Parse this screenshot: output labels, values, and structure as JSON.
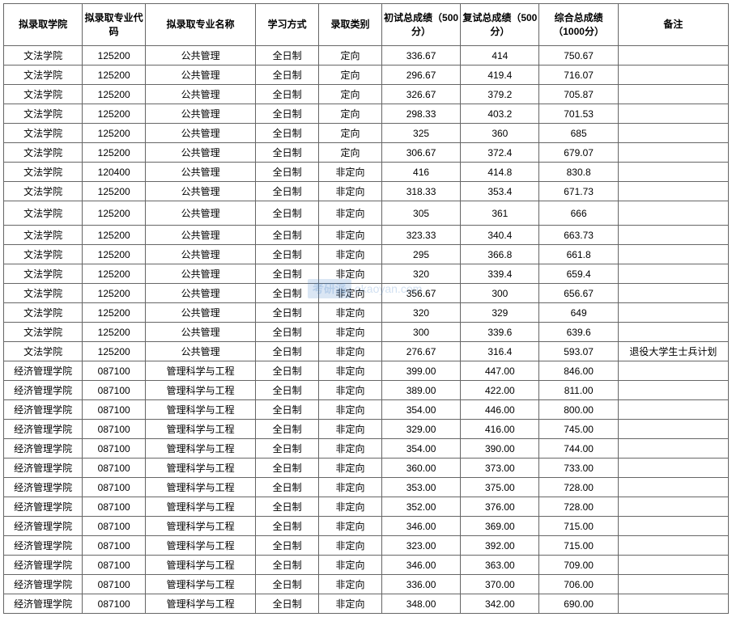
{
  "table": {
    "columns": [
      {
        "label": "拟录取学院",
        "width": "10%"
      },
      {
        "label": "拟录取专业代码",
        "width": "8%"
      },
      {
        "label": "拟录取专业名称",
        "width": "14%"
      },
      {
        "label": "学习方式",
        "width": "8%"
      },
      {
        "label": "录取类别",
        "width": "8%"
      },
      {
        "label": "初试总成绩（500分）",
        "width": "10%"
      },
      {
        "label": "复试总成绩（500分）",
        "width": "10%"
      },
      {
        "label": "综合总成绩（1000分）",
        "width": "10%"
      },
      {
        "label": "备注",
        "width": "14%"
      }
    ],
    "rows": [
      {
        "cells": [
          "文法学院",
          "125200",
          "公共管理",
          "全日制",
          "定向",
          "336.67",
          "414",
          "750.67",
          ""
        ],
        "tall": false
      },
      {
        "cells": [
          "文法学院",
          "125200",
          "公共管理",
          "全日制",
          "定向",
          "296.67",
          "419.4",
          "716.07",
          ""
        ],
        "tall": false
      },
      {
        "cells": [
          "文法学院",
          "125200",
          "公共管理",
          "全日制",
          "定向",
          "326.67",
          "379.2",
          "705.87",
          ""
        ],
        "tall": false
      },
      {
        "cells": [
          "文法学院",
          "125200",
          "公共管理",
          "全日制",
          "定向",
          "298.33",
          "403.2",
          "701.53",
          ""
        ],
        "tall": false
      },
      {
        "cells": [
          "文法学院",
          "125200",
          "公共管理",
          "全日制",
          "定向",
          "325",
          "360",
          "685",
          ""
        ],
        "tall": false
      },
      {
        "cells": [
          "文法学院",
          "125200",
          "公共管理",
          "全日制",
          "定向",
          "306.67",
          "372.4",
          "679.07",
          ""
        ],
        "tall": false
      },
      {
        "cells": [
          "文法学院",
          "120400",
          "公共管理",
          "全日制",
          "非定向",
          "416",
          "414.8",
          "830.8",
          ""
        ],
        "tall": false
      },
      {
        "cells": [
          "文法学院",
          "125200",
          "公共管理",
          "全日制",
          "非定向",
          "318.33",
          "353.4",
          "671.73",
          ""
        ],
        "tall": false
      },
      {
        "cells": [
          "文法学院",
          "125200",
          "公共管理",
          "全日制",
          "非定向",
          "305",
          "361",
          "666",
          ""
        ],
        "tall": true
      },
      {
        "cells": [
          "文法学院",
          "125200",
          "公共管理",
          "全日制",
          "非定向",
          "323.33",
          "340.4",
          "663.73",
          ""
        ],
        "tall": false
      },
      {
        "cells": [
          "文法学院",
          "125200",
          "公共管理",
          "全日制",
          "非定向",
          "295",
          "366.8",
          "661.8",
          ""
        ],
        "tall": false
      },
      {
        "cells": [
          "文法学院",
          "125200",
          "公共管理",
          "全日制",
          "非定向",
          "320",
          "339.4",
          "659.4",
          ""
        ],
        "tall": false
      },
      {
        "cells": [
          "文法学院",
          "125200",
          "公共管理",
          "全日制",
          "非定向",
          "356.67",
          "300",
          "656.67",
          ""
        ],
        "tall": false
      },
      {
        "cells": [
          "文法学院",
          "125200",
          "公共管理",
          "全日制",
          "非定向",
          "320",
          "329",
          "649",
          ""
        ],
        "tall": false
      },
      {
        "cells": [
          "文法学院",
          "125200",
          "公共管理",
          "全日制",
          "非定向",
          "300",
          "339.6",
          "639.6",
          ""
        ],
        "tall": false
      },
      {
        "cells": [
          "文法学院",
          "125200",
          "公共管理",
          "全日制",
          "非定向",
          "276.67",
          "316.4",
          "593.07",
          "退役大学生士兵计划"
        ],
        "tall": false
      },
      {
        "cells": [
          "经济管理学院",
          "087100",
          "管理科学与工程",
          "全日制",
          "非定向",
          "399.00",
          "447.00",
          "846.00",
          ""
        ],
        "tall": false
      },
      {
        "cells": [
          "经济管理学院",
          "087100",
          "管理科学与工程",
          "全日制",
          "非定向",
          "389.00",
          "422.00",
          "811.00",
          ""
        ],
        "tall": false
      },
      {
        "cells": [
          "经济管理学院",
          "087100",
          "管理科学与工程",
          "全日制",
          "非定向",
          "354.00",
          "446.00",
          "800.00",
          ""
        ],
        "tall": false
      },
      {
        "cells": [
          "经济管理学院",
          "087100",
          "管理科学与工程",
          "全日制",
          "非定向",
          "329.00",
          "416.00",
          "745.00",
          ""
        ],
        "tall": false
      },
      {
        "cells": [
          "经济管理学院",
          "087100",
          "管理科学与工程",
          "全日制",
          "非定向",
          "354.00",
          "390.00",
          "744.00",
          ""
        ],
        "tall": false
      },
      {
        "cells": [
          "经济管理学院",
          "087100",
          "管理科学与工程",
          "全日制",
          "非定向",
          "360.00",
          "373.00",
          "733.00",
          ""
        ],
        "tall": false
      },
      {
        "cells": [
          "经济管理学院",
          "087100",
          "管理科学与工程",
          "全日制",
          "非定向",
          "353.00",
          "375.00",
          "728.00",
          ""
        ],
        "tall": false
      },
      {
        "cells": [
          "经济管理学院",
          "087100",
          "管理科学与工程",
          "全日制",
          "非定向",
          "352.00",
          "376.00",
          "728.00",
          ""
        ],
        "tall": false
      },
      {
        "cells": [
          "经济管理学院",
          "087100",
          "管理科学与工程",
          "全日制",
          "非定向",
          "346.00",
          "369.00",
          "715.00",
          ""
        ],
        "tall": false
      },
      {
        "cells": [
          "经济管理学院",
          "087100",
          "管理科学与工程",
          "全日制",
          "非定向",
          "323.00",
          "392.00",
          "715.00",
          ""
        ],
        "tall": false
      },
      {
        "cells": [
          "经济管理学院",
          "087100",
          "管理科学与工程",
          "全日制",
          "非定向",
          "346.00",
          "363.00",
          "709.00",
          ""
        ],
        "tall": false
      },
      {
        "cells": [
          "经济管理学院",
          "087100",
          "管理科学与工程",
          "全日制",
          "非定向",
          "336.00",
          "370.00",
          "706.00",
          ""
        ],
        "tall": false
      },
      {
        "cells": [
          "经济管理学院",
          "087100",
          "管理科学与工程",
          "全日制",
          "非定向",
          "348.00",
          "342.00",
          "690.00",
          ""
        ],
        "tall": false
      }
    ],
    "border_color": "#666666",
    "background_color": "#ffffff",
    "text_color": "#000000",
    "header_fontsize": 12,
    "cell_fontsize": 12
  },
  "watermark": {
    "brand": "考研派",
    "url": "okaoyan.com",
    "color": "rgba(70, 130, 200, 0.25)"
  }
}
